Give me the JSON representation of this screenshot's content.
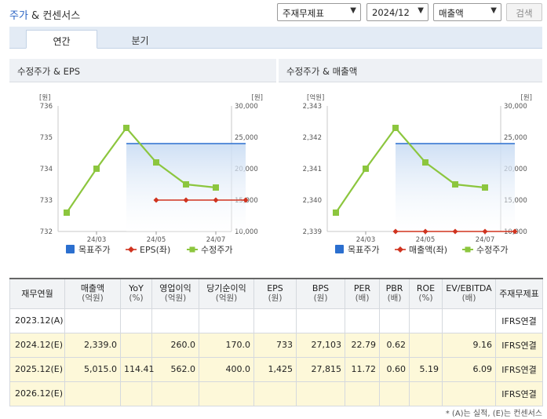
{
  "header": {
    "title_part1": "주가",
    "title_part2": " & 컨센서스",
    "standard_select": "주재무제표",
    "period_select": "2024/12",
    "metric_select": "매출액",
    "search_label": "검색"
  },
  "tabs": [
    {
      "label": "연간",
      "active": true
    },
    {
      "label": "분기",
      "active": false
    }
  ],
  "charts": [
    {
      "panel_title": "수정주가 & EPS",
      "left_unit": "[원]",
      "right_unit": "[원]",
      "left_ticks": [
        "736",
        "735",
        "734",
        "733",
        "732"
      ],
      "right_ticks": [
        "30,000",
        "25,000",
        "20,000",
        "15,000",
        "10,000"
      ],
      "x_ticks": [
        "24/03",
        "24/05",
        "24/07"
      ],
      "legend": [
        "목표주가",
        "EPS(좌)",
        "수정주가"
      ]
    },
    {
      "panel_title": "수정주가 & 매출액",
      "left_unit": "[억원]",
      "right_unit": "[원]",
      "left_ticks": [
        "2,343",
        "2,342",
        "2,341",
        "2,340",
        "2,339"
      ],
      "right_ticks": [
        "30,000",
        "25,000",
        "20,000",
        "15,000",
        "10,000"
      ],
      "x_ticks": [
        "24/03",
        "24/05",
        "24/07"
      ],
      "legend": [
        "목표주가",
        "매출액(좌)",
        "수정주가"
      ]
    }
  ],
  "chart_data": [
    {
      "type": "line",
      "x": [
        "24/02",
        "24/03",
        "24/04",
        "24/05",
        "24/06",
        "24/07",
        "24/08"
      ],
      "left_axis": {
        "ylim": [
          732,
          736
        ],
        "unit": "[원]"
      },
      "right_axis": {
        "ylim": [
          10000,
          30000
        ],
        "unit": "[원]"
      },
      "series": [
        {
          "name": "수정주가",
          "axis": "right",
          "color": "#8cc63e",
          "values": [
            13000,
            20000,
            26500,
            21000,
            17500,
            17000,
            null
          ]
        },
        {
          "name": "EPS(좌)",
          "axis": "left",
          "color": "#d0331f",
          "values": [
            null,
            null,
            null,
            733,
            733,
            733,
            733
          ]
        },
        {
          "name": "목표주가",
          "axis": "right",
          "color": "#2b6fcf",
          "values": [
            null,
            null,
            24000,
            24000,
            24000,
            24000,
            24000
          ]
        }
      ]
    },
    {
      "type": "line",
      "x": [
        "24/02",
        "24/03",
        "24/04",
        "24/05",
        "24/06",
        "24/07",
        "24/08"
      ],
      "left_axis": {
        "ylim": [
          2339,
          2343
        ],
        "unit": "[억원]"
      },
      "right_axis": {
        "ylim": [
          10000,
          30000
        ],
        "unit": "[원]"
      },
      "series": [
        {
          "name": "수정주가",
          "axis": "right",
          "color": "#8cc63e",
          "values": [
            13000,
            20000,
            26500,
            21000,
            17500,
            17000,
            null
          ]
        },
        {
          "name": "매출액(좌)",
          "axis": "left",
          "color": "#d0331f",
          "values": [
            null,
            null,
            2339,
            2339,
            2339,
            2339,
            2339
          ]
        },
        {
          "name": "목표주가",
          "axis": "right",
          "color": "#2b6fcf",
          "values": [
            null,
            null,
            24000,
            24000,
            24000,
            24000,
            24000
          ]
        }
      ]
    }
  ],
  "table": {
    "headers": [
      {
        "main": "재무연월",
        "sub": ""
      },
      {
        "main": "매출액",
        "sub": "(억원)"
      },
      {
        "main": "YoY",
        "sub": "(%)"
      },
      {
        "main": "영업이익",
        "sub": "(억원)"
      },
      {
        "main": "당기순이익",
        "sub": "(억원)"
      },
      {
        "main": "EPS",
        "sub": "(원)"
      },
      {
        "main": "BPS",
        "sub": "(원)"
      },
      {
        "main": "PER",
        "sub": "(배)"
      },
      {
        "main": "PBR",
        "sub": "(배)"
      },
      {
        "main": "ROE",
        "sub": "(%)"
      },
      {
        "main": "EV/EBITDA",
        "sub": "(배)"
      },
      {
        "main": "주재무제표",
        "sub": ""
      }
    ],
    "rows": [
      {
        "estimate": false,
        "cells": [
          "2023.12(A)",
          "",
          "",
          "",
          "",
          "",
          "",
          "",
          "",
          "",
          "",
          "IFRS연결"
        ]
      },
      {
        "estimate": true,
        "cells": [
          "2024.12(E)",
          "2,339.0",
          "",
          "260.0",
          "170.0",
          "733",
          "27,103",
          "22.79",
          "0.62",
          "",
          "9.16",
          "IFRS연결"
        ]
      },
      {
        "estimate": true,
        "cells": [
          "2025.12(E)",
          "5,015.0",
          "114.41",
          "562.0",
          "400.0",
          "1,425",
          "27,815",
          "11.72",
          "0.60",
          "5.19",
          "6.09",
          "IFRS연결"
        ]
      },
      {
        "estimate": true,
        "cells": [
          "2026.12(E)",
          "",
          "",
          "",
          "",
          "",
          "",
          "",
          "",
          "",
          "",
          "IFRS연결"
        ]
      }
    ]
  },
  "footnote": "* (A)는 실적, (E)는 컨센서스"
}
